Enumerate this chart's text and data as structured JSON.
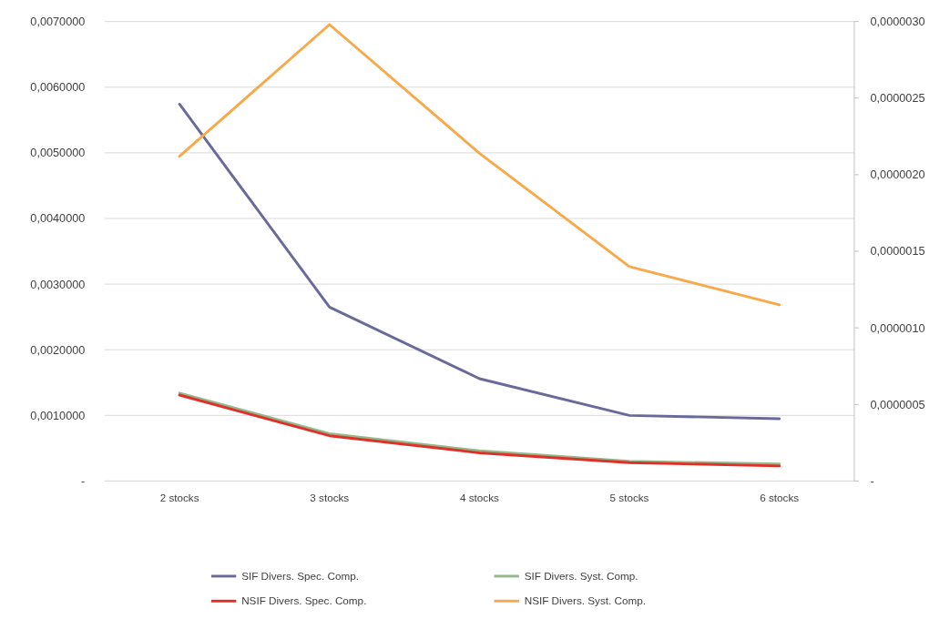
{
  "chart_data": {
    "type": "line",
    "categories": [
      "2 stocks",
      "3 stocks",
      "4 stocks",
      "5 stocks",
      "6 stocks"
    ],
    "series": [
      {
        "name": "SIF Divers. Spec. Comp.",
        "color": "#6a6a9a",
        "values": [
          0.00574,
          0.00265,
          0.00156,
          0.001,
          0.00095
        ]
      },
      {
        "name": "SIF Divers. Syst. Comp.",
        "color": "#93b98a",
        "values": [
          0.00134,
          0.00072,
          0.00046,
          0.0003,
          0.00026
        ]
      },
      {
        "name": "NSIF Divers. Spec. Comp.",
        "color": "#e0302a",
        "values": [
          0.00131,
          0.00069,
          0.00043,
          0.00028,
          0.00023
        ]
      },
      {
        "name": "NSIF Divers. Syst. Comp.",
        "color": "#f8a94a",
        "axis": "y2",
        "values": [
          2.12e-06,
          2.98e-06,
          2.14e-06,
          1.4e-06,
          1.15e-06
        ]
      }
    ],
    "ylim": [
      0,
      0.007
    ],
    "yticks": [
      {
        "value": 0,
        "label": "-"
      },
      {
        "value": 0.001,
        "label": "0,0010000"
      },
      {
        "value": 0.002,
        "label": "0,0020000"
      },
      {
        "value": 0.003,
        "label": "0,0030000"
      },
      {
        "value": 0.004,
        "label": "0,0040000"
      },
      {
        "value": 0.005,
        "label": "0,0050000"
      },
      {
        "value": 0.006,
        "label": "0,0060000"
      },
      {
        "value": 0.007,
        "label": "0,0070000"
      }
    ],
    "y2lim": [
      0,
      3e-06
    ],
    "y2ticks": [
      {
        "value": 0,
        "label": "-"
      },
      {
        "value": 5e-07,
        "label": "0,0000005"
      },
      {
        "value": 1e-06,
        "label": "0,0000010"
      },
      {
        "value": 1.5e-06,
        "label": "0,0000015"
      },
      {
        "value": 2e-06,
        "label": "0,0000020"
      },
      {
        "value": 2.5e-06,
        "label": "0,0000025"
      },
      {
        "value": 3e-06,
        "label": "0,0000030"
      }
    ],
    "grid": "y",
    "legend": "bottom",
    "marker": "none",
    "line_style": "solid"
  }
}
